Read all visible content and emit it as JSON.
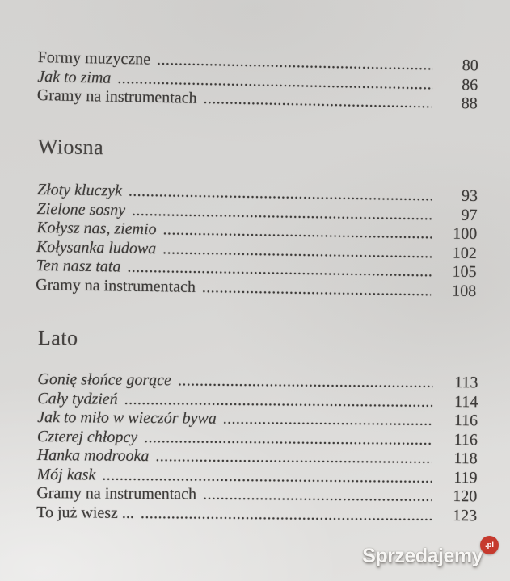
{
  "page": {
    "kind": "table-of-contents",
    "leader_char": ".",
    "sections": [
      {
        "heading": null,
        "entries": [
          {
            "title": "Formy muzyczne",
            "italic": false,
            "page": "80"
          },
          {
            "title": "Jak to zima",
            "italic": true,
            "page": "86"
          },
          {
            "title": "Gramy na instrumentach",
            "italic": false,
            "page": "88"
          }
        ]
      },
      {
        "heading": "Wiosna",
        "entries": [
          {
            "title": "Złoty kluczyk",
            "italic": true,
            "page": "93"
          },
          {
            "title": "Zielone sosny",
            "italic": true,
            "page": "97"
          },
          {
            "title": "Kołysz nas, ziemio",
            "italic": true,
            "page": "100"
          },
          {
            "title": "Kołysanka ludowa",
            "italic": true,
            "page": "102"
          },
          {
            "title": "Ten nasz tata",
            "italic": true,
            "page": "105"
          },
          {
            "title": "Gramy na instrumentach",
            "italic": false,
            "page": "108"
          }
        ]
      },
      {
        "heading": "Lato",
        "entries": [
          {
            "title": "Gonię słońce gorące",
            "italic": true,
            "page": "113"
          },
          {
            "title": "Cały tydzień",
            "italic": true,
            "page": "114"
          },
          {
            "title": "Jak to miło w wieczór bywa",
            "italic": true,
            "page": "116"
          },
          {
            "title": "Czterej chłopcy",
            "italic": true,
            "page": "116"
          },
          {
            "title": "Hanka modrooka",
            "italic": true,
            "page": "118"
          },
          {
            "title": "Mój kask",
            "italic": true,
            "page": "119"
          },
          {
            "title": "Gramy na instrumentach",
            "italic": false,
            "page": "120"
          },
          {
            "title": "To już wiesz ...",
            "italic": false,
            "page": "123"
          }
        ]
      }
    ],
    "colors": {
      "paper": "#d7d6d4",
      "ink": "#3c3a38"
    }
  },
  "watermark": {
    "text": "Sprzedajemy",
    "suffix": ".pl",
    "badge_color": "#c63a2e",
    "text_color": "#fcfbf9"
  }
}
